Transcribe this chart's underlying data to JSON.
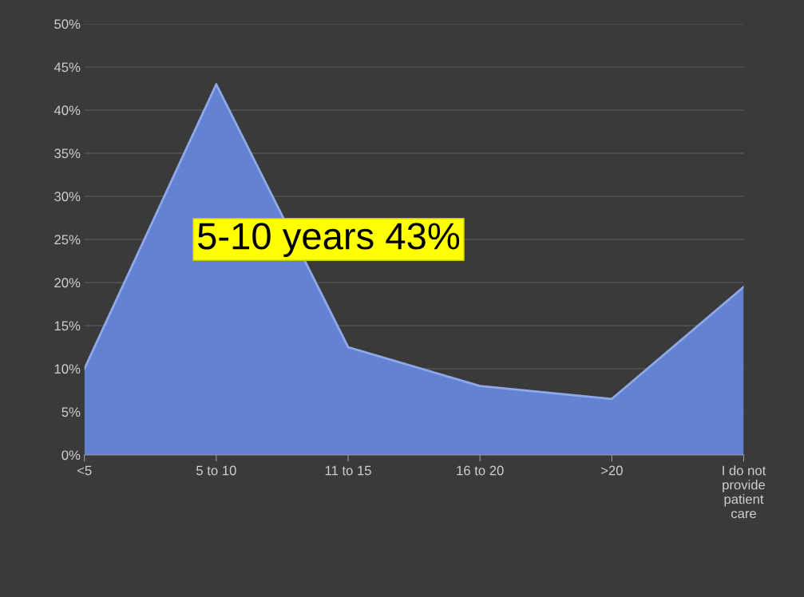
{
  "chart_data": {
    "type": "area",
    "categories": [
      "<5",
      "5 to 10",
      "11 to 15",
      "16 to 20",
      ">20",
      "I do not\nprovide\npatient\ncare"
    ],
    "series": [
      {
        "color": "#6482d2",
        "values": [
          10,
          43,
          12.5,
          8,
          6.5,
          19.5
        ]
      }
    ],
    "ylim": [
      0,
      50
    ],
    "yticks": [
      {
        "value": 0,
        "label": "0%"
      },
      {
        "value": 5,
        "label": "5%"
      },
      {
        "value": 10,
        "label": "10%"
      },
      {
        "value": 15,
        "label": "15%"
      },
      {
        "value": 20,
        "label": "20%"
      },
      {
        "value": 25,
        "label": "25%"
      },
      {
        "value": 30,
        "label": "30%"
      },
      {
        "value": 35,
        "label": "35%"
      },
      {
        "value": 40,
        "label": "40%"
      },
      {
        "value": 45,
        "label": "45%"
      },
      {
        "value": 50,
        "label": "50%"
      }
    ],
    "grid": "y",
    "annotations": [
      "5-10 years 43%"
    ]
  }
}
